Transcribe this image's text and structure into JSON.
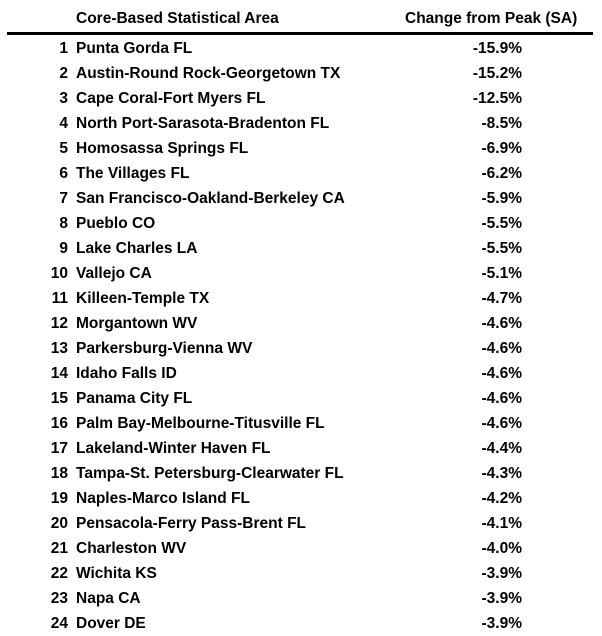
{
  "table": {
    "columns": [
      "Core-Based Statistical Area",
      "Change from Peak (SA)"
    ],
    "rows": [
      {
        "rank": "1",
        "area": "Punta Gorda FL",
        "change": "-15.9%"
      },
      {
        "rank": "2",
        "area": "Austin-Round Rock-Georgetown TX",
        "change": "-15.2%"
      },
      {
        "rank": "3",
        "area": "Cape Coral-Fort Myers FL",
        "change": "-12.5%"
      },
      {
        "rank": "4",
        "area": "North Port-Sarasota-Bradenton FL",
        "change": "-8.5%"
      },
      {
        "rank": "5",
        "area": "Homosassa Springs FL",
        "change": "-6.9%"
      },
      {
        "rank": "6",
        "area": "The Villages FL",
        "change": "-6.2%"
      },
      {
        "rank": "7",
        "area": "San Francisco-Oakland-Berkeley CA",
        "change": "-5.9%"
      },
      {
        "rank": "8",
        "area": "Pueblo CO",
        "change": "-5.5%"
      },
      {
        "rank": "9",
        "area": "Lake Charles LA",
        "change": "-5.5%"
      },
      {
        "rank": "10",
        "area": "Vallejo CA",
        "change": "-5.1%"
      },
      {
        "rank": "11",
        "area": "Killeen-Temple TX",
        "change": "-4.7%"
      },
      {
        "rank": "12",
        "area": "Morgantown WV",
        "change": "-4.6%"
      },
      {
        "rank": "13",
        "area": "Parkersburg-Vienna WV",
        "change": "-4.6%"
      },
      {
        "rank": "14",
        "area": "Idaho Falls ID",
        "change": "-4.6%"
      },
      {
        "rank": "15",
        "area": "Panama City FL",
        "change": "-4.6%"
      },
      {
        "rank": "16",
        "area": "Palm Bay-Melbourne-Titusville FL",
        "change": "-4.6%"
      },
      {
        "rank": "17",
        "area": "Lakeland-Winter Haven FL",
        "change": "-4.4%"
      },
      {
        "rank": "18",
        "area": "Tampa-St. Petersburg-Clearwater FL",
        "change": "-4.3%"
      },
      {
        "rank": "19",
        "area": "Naples-Marco Island FL",
        "change": "-4.2%"
      },
      {
        "rank": "20",
        "area": "Pensacola-Ferry Pass-Brent FL",
        "change": "-4.1%"
      },
      {
        "rank": "21",
        "area": "Charleston WV",
        "change": "-4.0%"
      },
      {
        "rank": "22",
        "area": "Wichita KS",
        "change": "-3.9%"
      },
      {
        "rank": "23",
        "area": "Napa CA",
        "change": "-3.9%"
      },
      {
        "rank": "24",
        "area": "Dover DE",
        "change": "-3.9%"
      }
    ]
  }
}
